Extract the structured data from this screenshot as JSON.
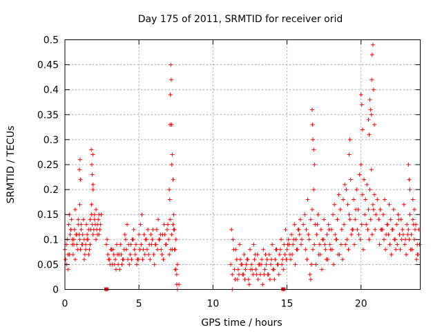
{
  "chart_data": {
    "type": "scatter",
    "title": "Day 175 of 2011, SRMTID for receiver orid",
    "xlabel": "GPS time / hours",
    "ylabel": "SRMTID / TECUs",
    "xlim": [
      0,
      24
    ],
    "ylim": [
      0,
      0.5
    ],
    "x_ticks": [
      0,
      5,
      10,
      15,
      20
    ],
    "x_tick_labels": [
      "0",
      "5",
      "10",
      "15",
      "20"
    ],
    "y_ticks": [
      0,
      0.05,
      0.1,
      0.15,
      0.2,
      0.25,
      0.3,
      0.35,
      0.4,
      0.45,
      0.5
    ],
    "y_tick_labels": [
      "0",
      "0.05",
      "0.1",
      "0.15",
      "0.2",
      "0.25",
      "0.3",
      "0.35",
      "0.4",
      "0.45",
      "0.5"
    ],
    "grid": true,
    "marker": "plus",
    "color": "#ff0000",
    "series": [
      {
        "name": "SRMTID",
        "x": [
          0.0,
          0.05,
          0.1,
          0.15,
          0.2,
          0.25,
          0.3,
          0.35,
          0.4,
          0.45,
          0.5,
          0.55,
          0.6,
          0.65,
          0.7,
          0.75,
          0.8,
          0.85,
          0.9,
          0.95,
          1.0,
          1.05,
          1.1,
          1.15,
          1.2,
          1.25,
          1.3,
          1.35,
          1.4,
          1.45,
          1.5,
          1.55,
          1.6,
          1.65,
          1.7,
          1.75,
          1.8,
          1.85,
          1.9,
          1.95,
          2.0,
          2.05,
          2.1,
          2.15,
          2.2,
          2.25,
          2.3,
          2.35,
          2.4,
          2.45,
          0.1,
          0.2,
          0.3,
          0.4,
          0.5,
          0.6,
          0.7,
          0.8,
          0.9,
          1.0,
          1.1,
          1.2,
          1.3,
          1.4,
          1.5,
          1.6,
          1.7,
          1.8,
          1.9,
          2.0,
          2.1,
          2.2,
          2.3,
          0.98,
          1.02,
          1.05,
          1.78,
          1.82,
          1.85,
          1.88,
          1.9,
          2.8,
          2.8,
          2.9,
          3.0,
          3.1,
          3.2,
          3.3,
          3.4,
          3.5,
          3.6,
          3.7,
          3.8,
          3.9,
          4.0,
          4.1,
          4.2,
          4.3,
          4.4,
          4.5,
          4.6,
          4.7,
          4.8,
          4.9,
          5.0,
          5.1,
          5.2,
          5.3,
          5.4,
          5.5,
          5.6,
          5.7,
          5.8,
          5.9,
          6.0,
          6.1,
          6.2,
          6.3,
          6.4,
          6.5,
          6.6,
          6.7,
          6.8,
          6.9,
          7.0,
          7.1,
          7.2,
          7.3,
          7.4,
          7.5,
          7.6,
          7.7,
          2.85,
          3.05,
          3.25,
          3.45,
          3.65,
          3.85,
          4.05,
          4.25,
          4.45,
          4.65,
          4.85,
          5.05,
          5.25,
          5.45,
          5.65,
          5.85,
          6.05,
          6.25,
          6.45,
          6.65,
          6.85,
          7.05,
          7.25,
          7.45,
          2.95,
          3.15,
          3.35,
          3.55,
          3.75,
          3.95,
          4.15,
          4.35,
          4.55,
          4.75,
          4.95,
          5.15,
          5.35,
          5.55,
          5.75,
          5.95,
          6.15,
          6.35,
          6.55,
          6.75,
          6.95,
          7.15,
          7.35,
          7.55,
          7.1,
          7.12,
          7.15,
          7.18,
          7.2,
          7.22,
          7.25,
          7.05,
          7.08,
          7.3,
          7.35,
          7.4,
          7.45,
          7.5,
          7.55,
          7.6,
          11.2,
          11.3,
          11.4,
          11.5,
          11.6,
          11.7,
          11.8,
          11.9,
          12.0,
          12.1,
          12.2,
          12.3,
          12.4,
          12.5,
          12.6,
          12.7,
          12.8,
          12.9,
          13.0,
          13.1,
          13.2,
          13.3,
          13.4,
          13.5,
          13.6,
          13.7,
          13.8,
          13.9,
          14.0,
          14.1,
          14.2,
          14.3,
          14.4,
          14.5,
          14.6,
          14.7,
          14.8,
          14.9,
          15.0,
          15.1,
          15.2,
          15.3,
          15.4,
          15.5,
          15.6,
          15.7,
          15.8,
          15.9,
          16.0,
          16.1,
          11.25,
          11.45,
          11.65,
          11.85,
          12.05,
          12.25,
          12.45,
          12.65,
          12.85,
          13.05,
          13.25,
          13.45,
          13.65,
          13.85,
          14.05,
          14.25,
          14.45,
          14.65,
          14.85,
          15.05,
          15.25,
          15.45,
          15.65,
          15.85,
          11.35,
          11.55,
          11.75,
          11.95,
          12.15,
          12.35,
          12.55,
          12.75,
          12.95,
          13.15,
          13.35,
          13.55,
          13.75,
          13.95,
          14.15,
          14.35,
          14.55,
          14.75,
          14.95,
          15.15,
          15.35,
          15.55,
          15.75,
          15.95,
          14.75,
          11.3,
          16.2,
          16.3,
          16.4,
          16.5,
          16.6,
          16.7,
          16.8,
          16.9,
          17.0,
          17.1,
          17.2,
          17.3,
          17.4,
          17.5,
          17.6,
          17.7,
          17.8,
          17.9,
          18.0,
          18.1,
          18.2,
          18.3,
          18.4,
          18.5,
          18.6,
          18.7,
          18.8,
          18.9,
          19.0,
          19.1,
          19.2,
          19.3,
          19.4,
          19.5,
          19.6,
          19.7,
          19.8,
          19.9,
          20.0,
          20.1,
          20.2,
          20.3,
          20.4,
          20.5,
          20.6,
          20.7,
          20.8,
          20.9,
          21.0,
          21.1,
          16.25,
          16.45,
          16.65,
          16.85,
          17.05,
          17.25,
          17.45,
          17.65,
          17.85,
          18.05,
          18.25,
          18.45,
          18.65,
          18.85,
          19.05,
          19.25,
          19.45,
          19.65,
          19.85,
          20.05,
          20.25,
          20.45,
          20.65,
          20.85,
          16.35,
          16.55,
          16.75,
          16.95,
          17.15,
          17.35,
          17.55,
          17.75,
          17.95,
          18.15,
          18.35,
          18.55,
          18.75,
          18.95,
          19.15,
          19.35,
          19.55,
          19.75,
          19.95,
          20.15,
          20.35,
          20.55,
          20.75,
          20.95,
          16.7,
          16.72,
          16.75,
          16.8,
          19.2,
          19.25,
          20.0,
          20.05,
          20.1,
          20.5,
          20.55,
          20.6,
          20.65,
          20.7,
          20.72,
          20.75,
          20.8,
          20.85,
          20.9,
          16.6,
          16.65,
          16.85,
          21.2,
          21.3,
          21.4,
          21.5,
          21.6,
          21.7,
          21.8,
          21.9,
          22.0,
          22.1,
          22.2,
          22.3,
          22.4,
          22.5,
          22.6,
          22.7,
          22.8,
          22.9,
          23.0,
          23.1,
          23.2,
          23.3,
          23.4,
          23.5,
          23.6,
          23.7,
          23.8,
          23.9,
          21.25,
          21.45,
          21.65,
          21.85,
          22.05,
          22.25,
          22.45,
          22.65,
          22.85,
          23.05,
          23.25,
          23.45,
          23.65,
          23.85,
          21.35,
          21.55,
          21.75,
          21.95,
          22.15,
          22.35,
          22.55,
          22.75,
          22.95,
          23.15,
          23.35,
          23.55,
          23.75,
          23.95,
          23.2,
          23.25,
          23.3,
          23.5,
          23.6,
          23.8
        ],
        "y": [
          0.08,
          0.06,
          0.09,
          0.1,
          0.07,
          0.13,
          0.15,
          0.11,
          0.12,
          0.14,
          0.09,
          0.07,
          0.1,
          0.12,
          0.16,
          0.11,
          0.09,
          0.08,
          0.13,
          0.11,
          0.1,
          0.08,
          0.12,
          0.09,
          0.11,
          0.14,
          0.1,
          0.07,
          0.09,
          0.13,
          0.11,
          0.1,
          0.12,
          0.08,
          0.14,
          0.12,
          0.15,
          0.13,
          0.11,
          0.12,
          0.14,
          0.13,
          0.16,
          0.12,
          0.11,
          0.14,
          0.15,
          0.12,
          0.13,
          0.15,
          0.05,
          0.04,
          0.07,
          0.12,
          0.1,
          0.09,
          0.06,
          0.11,
          0.14,
          0.17,
          0.13,
          0.09,
          0.06,
          0.08,
          0.1,
          0.07,
          0.09,
          0.17,
          0.2,
          0.15,
          0.1,
          0.13,
          0.11,
          0.24,
          0.26,
          0.22,
          0.28,
          0.25,
          0.23,
          0.27,
          0.21,
          0.0,
          0.09,
          0.07,
          0.06,
          0.08,
          0.05,
          0.07,
          0.06,
          0.09,
          0.05,
          0.04,
          0.07,
          0.06,
          0.08,
          0.1,
          0.13,
          0.09,
          0.07,
          0.06,
          0.1,
          0.08,
          0.09,
          0.06,
          0.11,
          0.13,
          0.15,
          0.08,
          0.07,
          0.1,
          0.12,
          0.09,
          0.11,
          0.1,
          0.07,
          0.09,
          0.12,
          0.14,
          0.1,
          0.08,
          0.11,
          0.13,
          0.09,
          0.12,
          0.1,
          0.14,
          0.11,
          0.13,
          0.08,
          0.1,
          0.05,
          0.01,
          0.1,
          0.05,
          0.08,
          0.04,
          0.07,
          0.05,
          0.11,
          0.06,
          0.09,
          0.12,
          0.05,
          0.08,
          0.06,
          0.1,
          0.07,
          0.09,
          0.05,
          0.08,
          0.11,
          0.06,
          0.09,
          0.07,
          0.08,
          0.04,
          0.06,
          0.08,
          0.05,
          0.07,
          0.09,
          0.06,
          0.08,
          0.05,
          0.1,
          0.07,
          0.06,
          0.09,
          0.11,
          0.08,
          0.06,
          0.12,
          0.09,
          0.1,
          0.07,
          0.11,
          0.13,
          0.08,
          0.12,
          0.03,
          0.33,
          0.39,
          0.45,
          0.42,
          0.33,
          0.25,
          0.27,
          0.2,
          0.18,
          0.22,
          0.15,
          0.12,
          0.08,
          0.04,
          0.01,
          0.0,
          0.05,
          0.03,
          0.08,
          0.02,
          0.06,
          0.04,
          0.09,
          0.05,
          0.03,
          0.07,
          0.04,
          0.06,
          0.02,
          0.08,
          0.05,
          0.03,
          0.06,
          0.04,
          0.07,
          0.05,
          0.03,
          0.06,
          0.08,
          0.04,
          0.05,
          0.03,
          0.07,
          0.05,
          0.09,
          0.04,
          0.06,
          0.08,
          0.05,
          0.07,
          0.1,
          0.06,
          0.09,
          0.12,
          0.08,
          0.1,
          0.07,
          0.11,
          0.09,
          0.13,
          0.1,
          0.08,
          0.12,
          0.14,
          0.1,
          0.13,
          0.12,
          0.04,
          0.02,
          0.06,
          0.03,
          0.05,
          0.01,
          0.04,
          0.07,
          0.02,
          0.05,
          0.03,
          0.06,
          0.02,
          0.04,
          0.08,
          0.03,
          0.05,
          0.07,
          0.09,
          0.06,
          0.1,
          0.08,
          0.11,
          0.1,
          0.08,
          0.03,
          0.05,
          0.02,
          0.06,
          0.04,
          0.09,
          0.03,
          0.05,
          0.01,
          0.07,
          0.03,
          0.06,
          0.02,
          0.05,
          0.08,
          0.04,
          0.06,
          0.09,
          0.07,
          0.05,
          0.12,
          0.09,
          0.0,
          0.0,
          0.15,
          0.12,
          0.18,
          0.1,
          0.14,
          0.16,
          0.2,
          0.13,
          0.11,
          0.15,
          0.09,
          0.12,
          0.1,
          0.14,
          0.08,
          0.11,
          0.13,
          0.09,
          0.12,
          0.15,
          0.17,
          0.1,
          0.14,
          0.19,
          0.16,
          0.12,
          0.18,
          0.21,
          0.2,
          0.17,
          0.15,
          0.22,
          0.12,
          0.18,
          0.14,
          0.2,
          0.16,
          0.23,
          0.25,
          0.19,
          0.22,
          0.18,
          0.21,
          0.16,
          0.2,
          0.24,
          0.17,
          0.19,
          0.15,
          0.18,
          0.08,
          0.11,
          0.05,
          0.09,
          0.13,
          0.07,
          0.1,
          0.06,
          0.12,
          0.08,
          0.11,
          0.07,
          0.09,
          0.13,
          0.1,
          0.14,
          0.12,
          0.16,
          0.11,
          0.13,
          0.15,
          0.12,
          0.14,
          0.16,
          0.06,
          0.03,
          0.08,
          0.05,
          0.07,
          0.04,
          0.09,
          0.06,
          0.08,
          0.05,
          0.1,
          0.07,
          0.06,
          0.09,
          0.08,
          0.11,
          0.09,
          0.12,
          0.1,
          0.08,
          0.13,
          0.1,
          0.11,
          0.12,
          0.36,
          0.33,
          0.3,
          0.28,
          0.27,
          0.3,
          0.39,
          0.37,
          0.32,
          0.34,
          0.31,
          0.38,
          0.36,
          0.35,
          0.42,
          0.47,
          0.49,
          0.4,
          0.33,
          0.02,
          0.05,
          0.25,
          0.14,
          0.16,
          0.12,
          0.15,
          0.18,
          0.11,
          0.13,
          0.17,
          0.14,
          0.12,
          0.16,
          0.1,
          0.13,
          0.15,
          0.11,
          0.14,
          0.12,
          0.17,
          0.1,
          0.13,
          0.12,
          0.15,
          0.11,
          0.14,
          0.1,
          0.13,
          0.09,
          0.12,
          0.09,
          0.12,
          0.08,
          0.11,
          0.07,
          0.1,
          0.09,
          0.08,
          0.11,
          0.07,
          0.1,
          0.08,
          0.12,
          0.07,
          0.12,
          0.1,
          0.13,
          0.09,
          0.12,
          0.08,
          0.14,
          0.1,
          0.09,
          0.11,
          0.08,
          0.13,
          0.06,
          0.09,
          0.25,
          0.22,
          0.2,
          0.18,
          0.16,
          0.07
        ]
      }
    ],
    "bottom_markers": {
      "x": [
        2.8,
        14.75
      ],
      "y": [
        0,
        0
      ]
    }
  }
}
